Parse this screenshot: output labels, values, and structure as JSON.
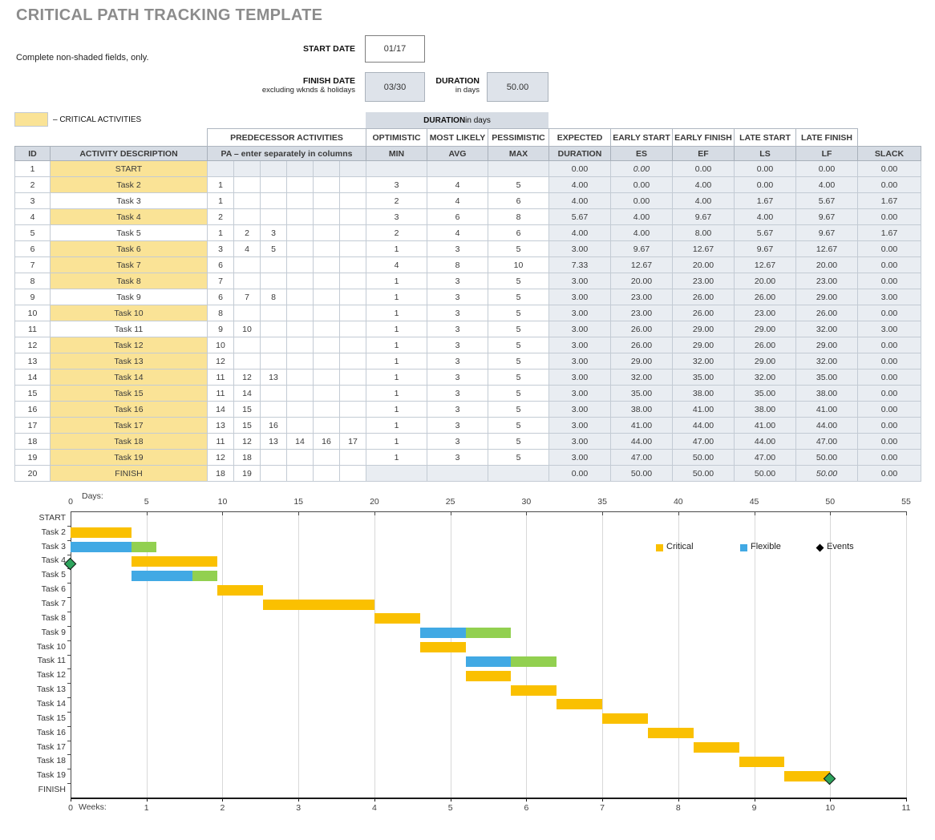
{
  "header": {
    "title": "CRITICAL PATH TRACKING TEMPLATE",
    "instructions": "Complete non-shaded fields, only.",
    "start_date_label": "START DATE",
    "start_date_value": "01/17",
    "finish_date_label": "FINISH DATE",
    "finish_date_note": "excluding wknds & holidays",
    "finish_date_value": "03/30",
    "duration_label": "DURATION",
    "duration_note": "in days",
    "duration_value": "50.00",
    "critical_legend_label": "– CRITICAL ACTIVITIES",
    "critical_color": "#FAE396",
    "banner_bold": "DURATION",
    "banner_rest": " in days"
  },
  "table": {
    "group_cells": [
      {
        "label": "",
        "blank": true
      },
      {
        "label": "",
        "blank": true
      },
      {
        "label": "PREDECESSOR ACTIVITIES"
      },
      {
        "label": "OPTIMISTIC"
      },
      {
        "label": "MOST LIKELY"
      },
      {
        "label": "PESSIMISTIC"
      },
      {
        "label": "EXPECTED"
      },
      {
        "label": "EARLY START"
      },
      {
        "label": "EARLY FINISH"
      },
      {
        "label": "LATE START"
      },
      {
        "label": "LATE FINISH"
      },
      {
        "label": "",
        "blank": true
      }
    ],
    "col_headers": [
      "ID",
      "ACTIVITY DESCRIPTION",
      "PA  –  enter separately in columns",
      "MIN",
      "AVG",
      "MAX",
      "DURATION",
      "ES",
      "EF",
      "LS",
      "LF",
      "SLACK"
    ],
    "rows": [
      {
        "id": "1",
        "activity": "START",
        "critical": true,
        "shade_pa": true,
        "shade_mam": true,
        "pa": [
          "",
          "",
          "",
          "",
          "",
          ""
        ],
        "min": "",
        "avg": "",
        "max": "",
        "dur": "0.00",
        "es": "0.00",
        "ef": "0.00",
        "ls": "0.00",
        "lf": "0.00",
        "slack": "0.00",
        "italic": [
          "es"
        ]
      },
      {
        "id": "2",
        "activity": "Task 2",
        "critical": true,
        "pa": [
          "1",
          "",
          "",
          "",
          "",
          ""
        ],
        "min": "3",
        "avg": "4",
        "max": "5",
        "dur": "4.00",
        "es": "0.00",
        "ef": "4.00",
        "ls": "0.00",
        "lf": "4.00",
        "slack": "0.00",
        "italic": []
      },
      {
        "id": "3",
        "activity": "Task 3",
        "critical": false,
        "pa": [
          "1",
          "",
          "",
          "",
          "",
          ""
        ],
        "min": "2",
        "avg": "4",
        "max": "6",
        "dur": "4.00",
        "es": "0.00",
        "ef": "4.00",
        "ls": "1.67",
        "lf": "5.67",
        "slack": "1.67",
        "italic": []
      },
      {
        "id": "4",
        "activity": "Task 4",
        "critical": true,
        "pa": [
          "2",
          "",
          "",
          "",
          "",
          ""
        ],
        "min": "3",
        "avg": "6",
        "max": "8",
        "dur": "5.67",
        "es": "4.00",
        "ef": "9.67",
        "ls": "4.00",
        "lf": "9.67",
        "slack": "0.00",
        "italic": []
      },
      {
        "id": "5",
        "activity": "Task 5",
        "critical": false,
        "pa": [
          "1",
          "2",
          "3",
          "",
          "",
          ""
        ],
        "min": "2",
        "avg": "4",
        "max": "6",
        "dur": "4.00",
        "es": "4.00",
        "ef": "8.00",
        "ls": "5.67",
        "lf": "9.67",
        "slack": "1.67",
        "italic": []
      },
      {
        "id": "6",
        "activity": "Task 6",
        "critical": true,
        "pa": [
          "3",
          "4",
          "5",
          "",
          "",
          ""
        ],
        "min": "1",
        "avg": "3",
        "max": "5",
        "dur": "3.00",
        "es": "9.67",
        "ef": "12.67",
        "ls": "9.67",
        "lf": "12.67",
        "slack": "0.00",
        "italic": []
      },
      {
        "id": "7",
        "activity": "Task 7",
        "critical": true,
        "pa": [
          "6",
          "",
          "",
          "",
          "",
          ""
        ],
        "min": "4",
        "avg": "8",
        "max": "10",
        "dur": "7.33",
        "es": "12.67",
        "ef": "20.00",
        "ls": "12.67",
        "lf": "20.00",
        "slack": "0.00",
        "italic": []
      },
      {
        "id": "8",
        "activity": "Task 8",
        "critical": true,
        "pa": [
          "7",
          "",
          "",
          "",
          "",
          ""
        ],
        "min": "1",
        "avg": "3",
        "max": "5",
        "dur": "3.00",
        "es": "20.00",
        "ef": "23.00",
        "ls": "20.00",
        "lf": "23.00",
        "slack": "0.00",
        "italic": []
      },
      {
        "id": "9",
        "activity": "Task 9",
        "critical": false,
        "pa": [
          "6",
          "7",
          "8",
          "",
          "",
          ""
        ],
        "min": "1",
        "avg": "3",
        "max": "5",
        "dur": "3.00",
        "es": "23.00",
        "ef": "26.00",
        "ls": "26.00",
        "lf": "29.00",
        "slack": "3.00",
        "italic": []
      },
      {
        "id": "10",
        "activity": "Task 10",
        "critical": true,
        "pa": [
          "8",
          "",
          "",
          "",
          "",
          ""
        ],
        "min": "1",
        "avg": "3",
        "max": "5",
        "dur": "3.00",
        "es": "23.00",
        "ef": "26.00",
        "ls": "23.00",
        "lf": "26.00",
        "slack": "0.00",
        "italic": []
      },
      {
        "id": "11",
        "activity": "Task 11",
        "critical": false,
        "pa": [
          "9",
          "10",
          "",
          "",
          "",
          ""
        ],
        "min": "1",
        "avg": "3",
        "max": "5",
        "dur": "3.00",
        "es": "26.00",
        "ef": "29.00",
        "ls": "29.00",
        "lf": "32.00",
        "slack": "3.00",
        "italic": []
      },
      {
        "id": "12",
        "activity": "Task 12",
        "critical": true,
        "pa": [
          "10",
          "",
          "",
          "",
          "",
          ""
        ],
        "min": "1",
        "avg": "3",
        "max": "5",
        "dur": "3.00",
        "es": "26.00",
        "ef": "29.00",
        "ls": "26.00",
        "lf": "29.00",
        "slack": "0.00",
        "italic": []
      },
      {
        "id": "13",
        "activity": "Task 13",
        "critical": true,
        "pa": [
          "12",
          "",
          "",
          "",
          "",
          ""
        ],
        "min": "1",
        "avg": "3",
        "max": "5",
        "dur": "3.00",
        "es": "29.00",
        "ef": "32.00",
        "ls": "29.00",
        "lf": "32.00",
        "slack": "0.00",
        "italic": []
      },
      {
        "id": "14",
        "activity": "Task 14",
        "critical": true,
        "pa": [
          "11",
          "12",
          "13",
          "",
          "",
          ""
        ],
        "min": "1",
        "avg": "3",
        "max": "5",
        "dur": "3.00",
        "es": "32.00",
        "ef": "35.00",
        "ls": "32.00",
        "lf": "35.00",
        "slack": "0.00",
        "italic": []
      },
      {
        "id": "15",
        "activity": "Task 15",
        "critical": true,
        "pa": [
          "11",
          "14",
          "",
          "",
          "",
          ""
        ],
        "min": "1",
        "avg": "3",
        "max": "5",
        "dur": "3.00",
        "es": "35.00",
        "ef": "38.00",
        "ls": "35.00",
        "lf": "38.00",
        "slack": "0.00",
        "italic": []
      },
      {
        "id": "16",
        "activity": "Task 16",
        "critical": true,
        "pa": [
          "14",
          "15",
          "",
          "",
          "",
          ""
        ],
        "min": "1",
        "avg": "3",
        "max": "5",
        "dur": "3.00",
        "es": "38.00",
        "ef": "41.00",
        "ls": "38.00",
        "lf": "41.00",
        "slack": "0.00",
        "italic": []
      },
      {
        "id": "17",
        "activity": "Task 17",
        "critical": true,
        "pa": [
          "13",
          "15",
          "16",
          "",
          "",
          ""
        ],
        "min": "1",
        "avg": "3",
        "max": "5",
        "dur": "3.00",
        "es": "41.00",
        "ef": "44.00",
        "ls": "41.00",
        "lf": "44.00",
        "slack": "0.00",
        "italic": []
      },
      {
        "id": "18",
        "activity": "Task 18",
        "critical": true,
        "pa": [
          "11",
          "12",
          "13",
          "14",
          "16",
          "17"
        ],
        "min": "1",
        "avg": "3",
        "max": "5",
        "dur": "3.00",
        "es": "44.00",
        "ef": "47.00",
        "ls": "44.00",
        "lf": "47.00",
        "slack": "0.00",
        "italic": []
      },
      {
        "id": "19",
        "activity": "Task 19",
        "critical": true,
        "pa": [
          "12",
          "18",
          "",
          "",
          "",
          ""
        ],
        "min": "1",
        "avg": "3",
        "max": "5",
        "dur": "3.00",
        "es": "47.00",
        "ef": "50.00",
        "ls": "47.00",
        "lf": "50.00",
        "slack": "0.00",
        "italic": []
      },
      {
        "id": "20",
        "activity": "FINISH",
        "critical": true,
        "shade_mam": true,
        "pa": [
          "18",
          "19",
          "",
          "",
          "",
          ""
        ],
        "min": "",
        "avg": "",
        "max": "",
        "dur": "0.00",
        "es": "50.00",
        "ef": "50.00",
        "ls": "50.00",
        "lf": "50.00",
        "slack": "0.00",
        "italic": [
          "lf"
        ]
      }
    ]
  },
  "chart_data": {
    "type": "bar",
    "subtype": "gantt",
    "x_axis_top": {
      "label": "Days:",
      "ticks": [
        0,
        5,
        10,
        15,
        20,
        25,
        30,
        35,
        40,
        45,
        50,
        55
      ],
      "max": 55
    },
    "x_axis_bottom": {
      "label": "Weeks:",
      "ticks": [
        0,
        1,
        2,
        3,
        4,
        5,
        6,
        7,
        8,
        9,
        10,
        11
      ],
      "max": 11
    },
    "legend": [
      {
        "label": "Critical",
        "marker": "square",
        "color": "#FAC001"
      },
      {
        "label": "Flexible",
        "marker": "square",
        "color": "#41A9E4"
      },
      {
        "label": "Events",
        "marker": "diamond",
        "color": "#000000"
      }
    ],
    "slack_color": "#92D050",
    "event_marker_color": "#2EA45D",
    "grid": true,
    "rows": [
      {
        "label": "START",
        "segments": []
      },
      {
        "label": "Task 2",
        "segments": [
          {
            "type": "critical",
            "start": 0,
            "end": 4
          }
        ]
      },
      {
        "label": "Task 3",
        "segments": [
          {
            "type": "flexible",
            "start": 0,
            "end": 4
          },
          {
            "type": "slack",
            "start": 4,
            "end": 5.67
          }
        ]
      },
      {
        "label": "Task 4",
        "segments": [
          {
            "type": "critical",
            "start": 4,
            "end": 9.67
          }
        ]
      },
      {
        "label": "Task 5",
        "segments": [
          {
            "type": "flexible",
            "start": 4,
            "end": 8
          },
          {
            "type": "slack",
            "start": 8,
            "end": 9.67
          }
        ]
      },
      {
        "label": "Task 6",
        "segments": [
          {
            "type": "critical",
            "start": 9.67,
            "end": 12.67
          }
        ]
      },
      {
        "label": "Task 7",
        "segments": [
          {
            "type": "critical",
            "start": 12.67,
            "end": 20
          }
        ]
      },
      {
        "label": "Task 8",
        "segments": [
          {
            "type": "critical",
            "start": 20,
            "end": 23
          }
        ]
      },
      {
        "label": "Task 9",
        "segments": [
          {
            "type": "flexible",
            "start": 23,
            "end": 26
          },
          {
            "type": "slack",
            "start": 26,
            "end": 29
          }
        ]
      },
      {
        "label": "Task 10",
        "segments": [
          {
            "type": "critical",
            "start": 23,
            "end": 26
          }
        ]
      },
      {
        "label": "Task 11",
        "segments": [
          {
            "type": "flexible",
            "start": 26,
            "end": 29
          },
          {
            "type": "slack",
            "start": 29,
            "end": 32
          }
        ]
      },
      {
        "label": "Task 12",
        "segments": [
          {
            "type": "critical",
            "start": 26,
            "end": 29
          }
        ]
      },
      {
        "label": "Task 13",
        "segments": [
          {
            "type": "critical",
            "start": 29,
            "end": 32
          }
        ]
      },
      {
        "label": "Task 14",
        "segments": [
          {
            "type": "critical",
            "start": 32,
            "end": 35
          }
        ]
      },
      {
        "label": "Task 15",
        "segments": [
          {
            "type": "critical",
            "start": 35,
            "end": 38
          }
        ]
      },
      {
        "label": "Task 16",
        "segments": [
          {
            "type": "critical",
            "start": 38,
            "end": 41
          }
        ]
      },
      {
        "label": "Task 17",
        "segments": [
          {
            "type": "critical",
            "start": 41,
            "end": 44
          }
        ]
      },
      {
        "label": "Task 18",
        "segments": [
          {
            "type": "critical",
            "start": 44,
            "end": 47
          }
        ]
      },
      {
        "label": "Task 19",
        "segments": [
          {
            "type": "critical",
            "start": 47,
            "end": 50
          }
        ]
      },
      {
        "label": "FINISH",
        "segments": []
      }
    ],
    "events": [
      {
        "row": "Task 4",
        "day": 0
      },
      {
        "row": "Task 19",
        "day": 50
      }
    ]
  }
}
